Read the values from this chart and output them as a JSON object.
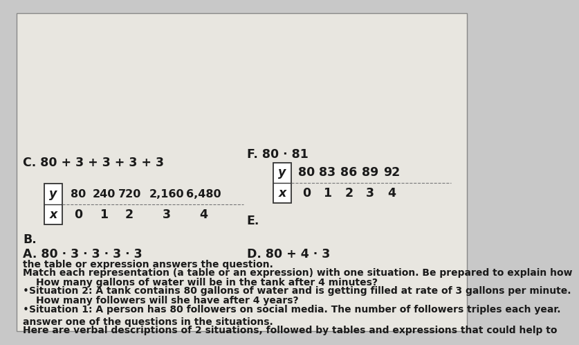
{
  "background_color": "#c8c8c8",
  "card_color": "#e8e6e0",
  "card_border_color": "#888888",
  "text_color": "#1a1a1a",
  "header_line1": "Here are verbal descriptions of 2 situations, followed by tables and expressions that could help to",
  "header_line2": "answer one of the questions in the situations.",
  "sit1_line1": "Situation 1: A person has 80 followers on social media. The number of followers triples each year.",
  "sit1_line2": "How many followers will she have after 4 years?",
  "sit2_line1": "Situation 2: A tank contains 80 gallons of water and is getting filled at rate of 3 gallons per minute.",
  "sit2_line2": "How many gallons of water will be in the tank after 4 minutes?",
  "match_line1": "Match each representation (a table or an expression) with one situation. Be prepared to explain how",
  "match_line2": "the table or expression answers the question.",
  "item_A": "A. 80 · 3 · 3 · 3 · 3",
  "item_D": "D. 80 + 4 · 3",
  "item_B_label": "B.",
  "item_E_label": "E.",
  "item_C": "C. 80 + 3 + 3 + 3 + 3",
  "item_F": "F. 80 · 81",
  "table_B_x": [
    "0",
    "1",
    "2",
    "3",
    "4"
  ],
  "table_B_y": [
    "80",
    "240",
    "720",
    "2,160",
    "6,480"
  ],
  "table_E_x": [
    "0",
    "1",
    "2",
    "3",
    "4"
  ],
  "table_E_y": [
    "80",
    "83",
    "86",
    "89",
    "92"
  ],
  "fs_header": 10.0,
  "fs_items": 12.5,
  "fs_table": 12.5
}
